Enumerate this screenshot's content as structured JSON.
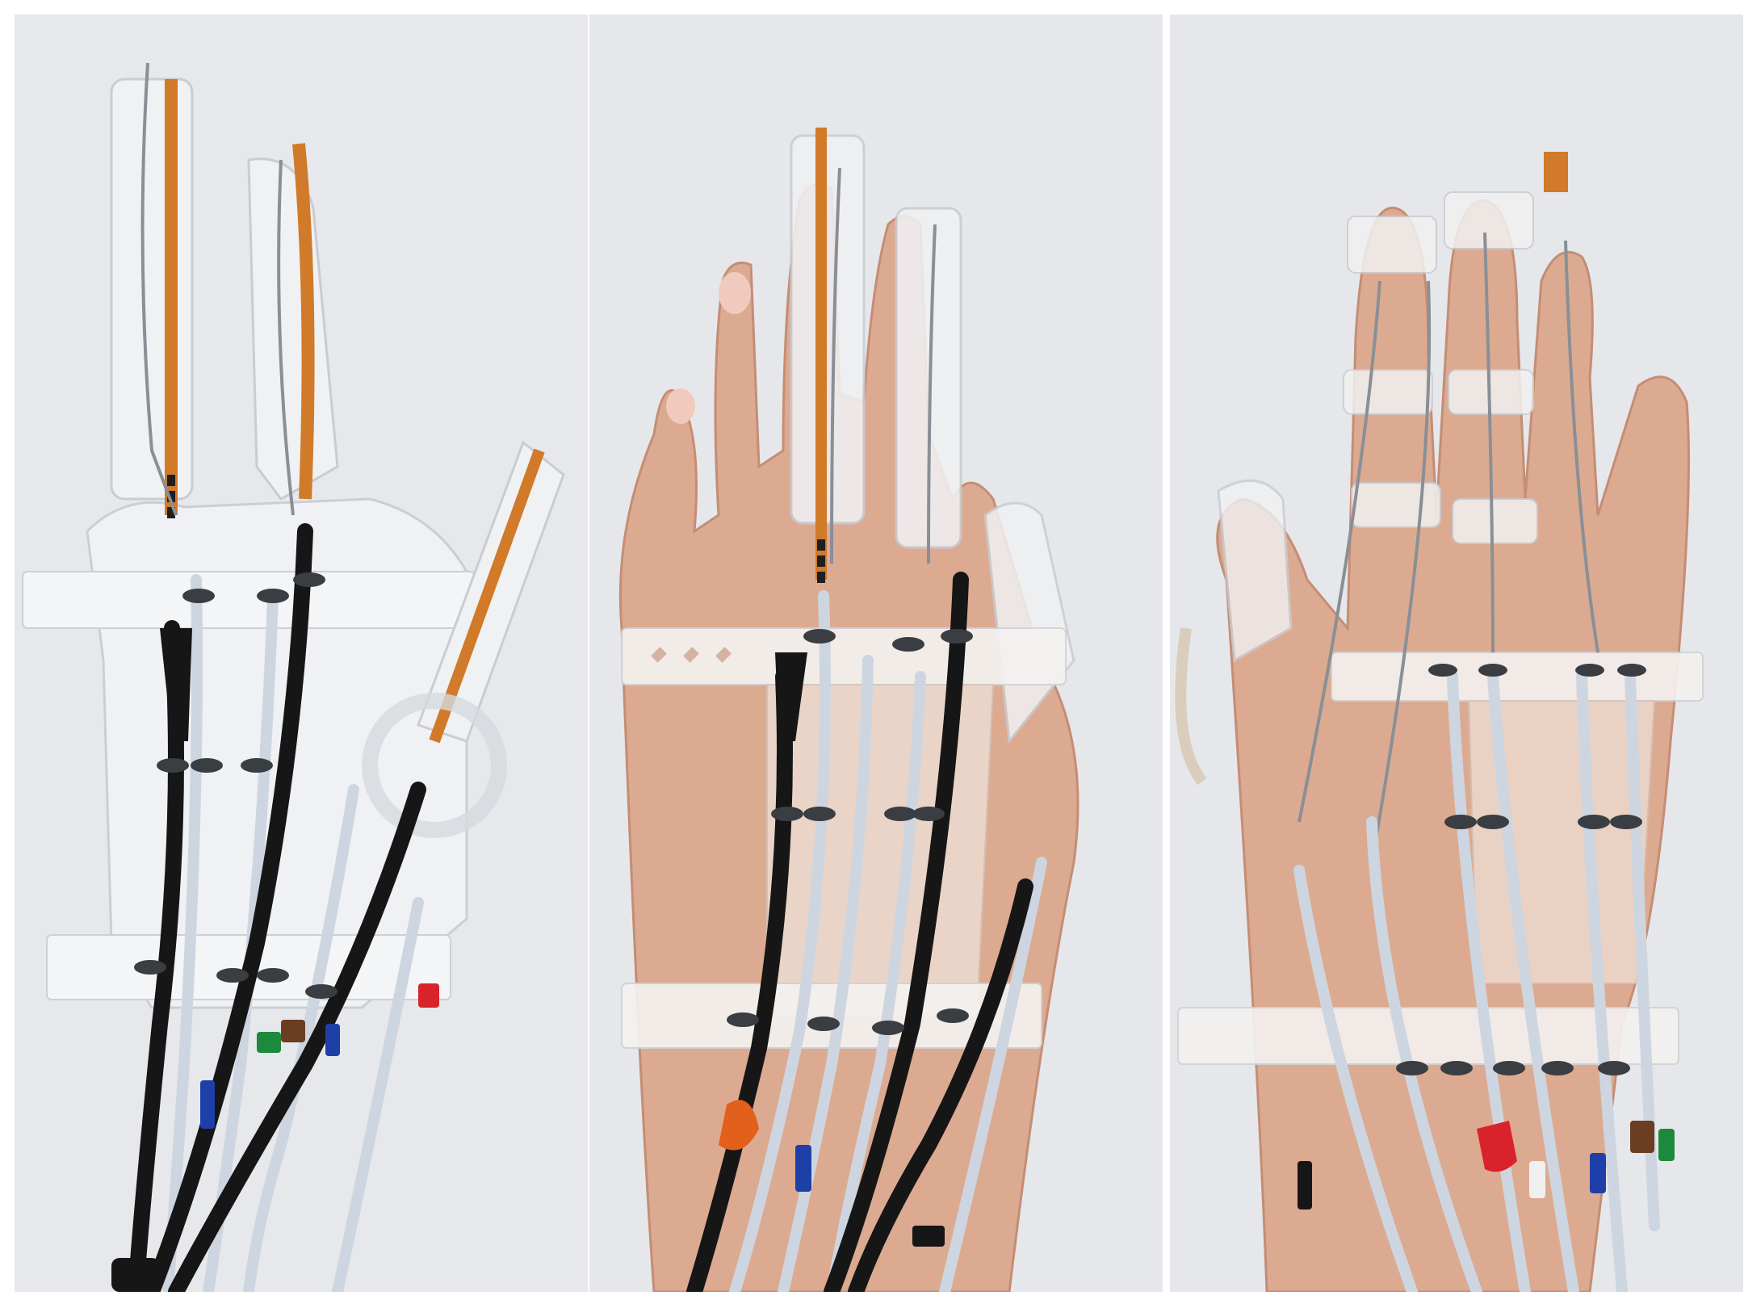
{
  "figure": {
    "panels": [
      {
        "id": "panel-a",
        "subject": "glove-exoskeleton-detached"
      },
      {
        "id": "panel-b",
        "subject": "glove-exoskeleton-worn-dorsal"
      },
      {
        "id": "panel-c",
        "subject": "glove-exoskeleton-worn-palmar"
      }
    ]
  },
  "colors": {
    "background": "#e6e7ea",
    "skin": "#dcaa91",
    "skin_shadow": "#c48d76",
    "silicone": "#eef0f2",
    "silicone_edge": "#c9ccd1",
    "flex_sensor": "#d07a2a",
    "sensor_pad": "#1f1f1f",
    "black_tube": "#161616",
    "white_tube": "#cdd6e0",
    "steel_cable": "#8a8f96",
    "blue_connector": "#1f3fa8",
    "red_connector": "#d8232a",
    "green_connector": "#1c8a3c",
    "orange_connector": "#e2601b",
    "brown_connector": "#6b3e22"
  }
}
